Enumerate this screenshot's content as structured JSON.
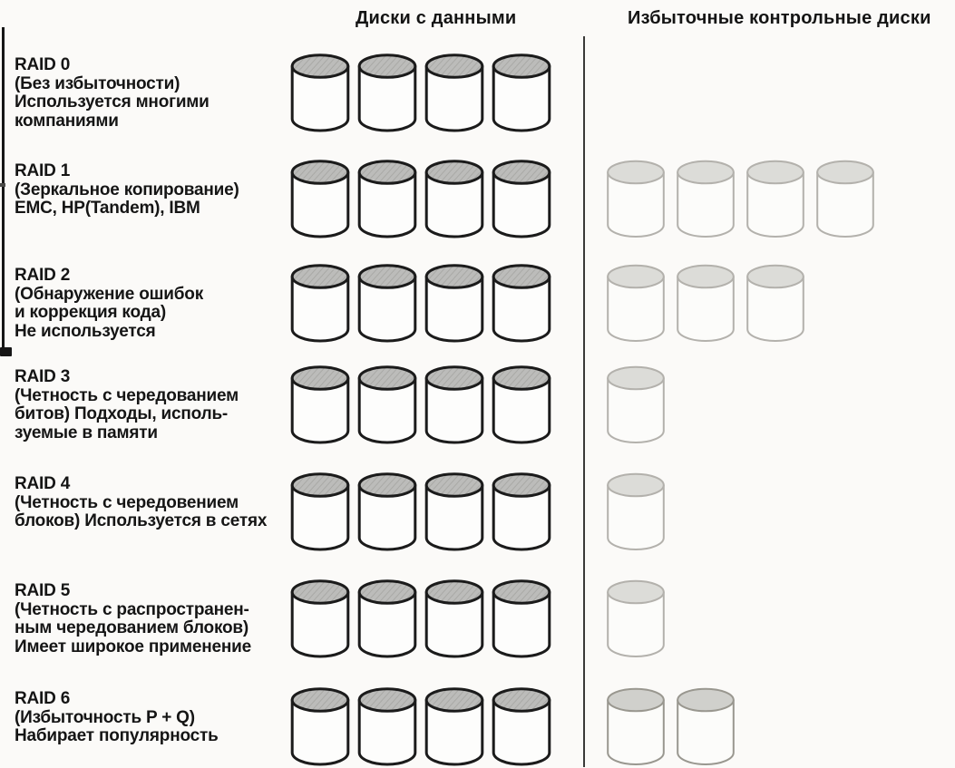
{
  "headers": {
    "data_disks": "Диски с данными",
    "redundant_disks": "Избыточные контрольные диски"
  },
  "disk_colors": {
    "data_outline": "#1b1b1b",
    "data_top_base": "#bcbcba",
    "data_top_hatch": "#a9a9a6",
    "data_body": "#fdfdfc",
    "redundant_outline": "#b3b1ac",
    "redundant_top": "#dcdcd8",
    "redundant_body": "#fcfcfa",
    "redundant_dark_outline": "#99978f",
    "redundant_dark_top": "#d0d0cc"
  },
  "rows": [
    {
      "title": "RAID 0",
      "description": "(Без избыточности)\nИспользуется многими\nкомпаниями",
      "data_disks": 4,
      "redundant_disks": 0,
      "redundant_shade": "normal"
    },
    {
      "title": "RAID 1",
      "description": "(Зеркальное копирование)\nEMC, HP(Tandem), IBM",
      "data_disks": 4,
      "redundant_disks": 4,
      "redundant_shade": "normal"
    },
    {
      "title": "RAID 2",
      "description": "(Обнаружение ошибок\nи коррекция кода)\nНе используется",
      "data_disks": 4,
      "redundant_disks": 3,
      "redundant_shade": "normal"
    },
    {
      "title": "RAID 3",
      "description": "(Четность с чередованием\nбитов) Подходы, исполь-\nзуемые в памяти",
      "data_disks": 4,
      "redundant_disks": 1,
      "redundant_shade": "normal"
    },
    {
      "title": "RAID 4",
      "description": "(Четность с чередовением\nблоков) Используется в сетях",
      "data_disks": 4,
      "redundant_disks": 1,
      "redundant_shade": "normal"
    },
    {
      "title": "RAID 5",
      "description": "(Четность с распространен-\nным чередованием блоков)\nИмеет широкое применение",
      "data_disks": 4,
      "redundant_disks": 1,
      "redundant_shade": "normal"
    },
    {
      "title": "RAID 6",
      "description": "(Избыточность P + Q)\nНабирает популярность",
      "data_disks": 4,
      "redundant_disks": 2,
      "redundant_shade": "dark"
    }
  ]
}
